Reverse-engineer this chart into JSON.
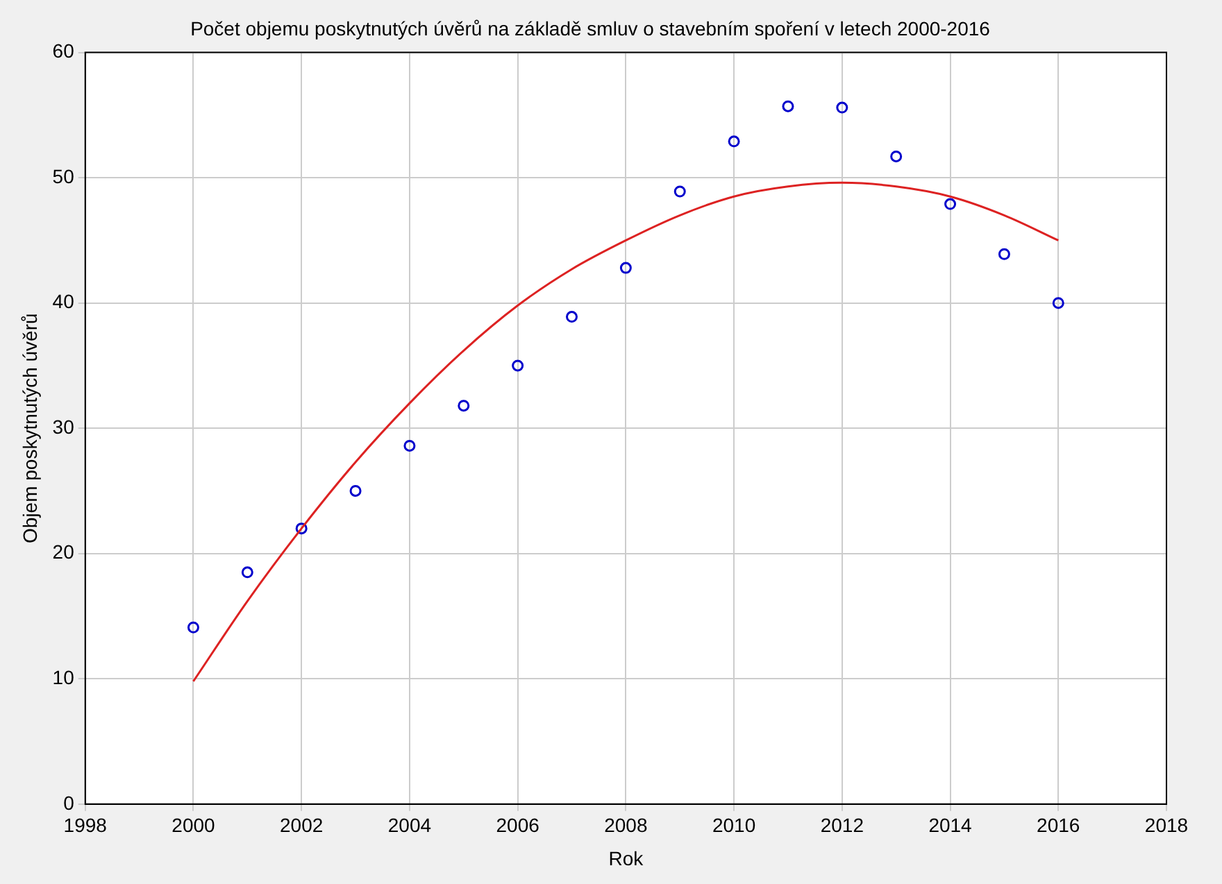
{
  "chart_data": {
    "type": "scatter",
    "title": "Počet objemu poskytnutých úvěrů na základě smluv o stavebním spoření v letech 2000-2016",
    "xlabel": "Rok",
    "ylabel": "Objem poskytnutých úvěrů",
    "xlim": [
      1998,
      2018
    ],
    "xticks": [
      1998,
      2000,
      2002,
      2004,
      2006,
      2008,
      2010,
      2012,
      2014,
      2016,
      2018
    ],
    "ylim": [
      0,
      60
    ],
    "yticks": [
      0,
      10,
      20,
      30,
      40,
      50,
      60
    ],
    "grid": true,
    "legend": false,
    "series": [
      {
        "marker": "circle",
        "color": "#0000cc",
        "x": [
          2000,
          2001,
          2002,
          2003,
          2004,
          2005,
          2006,
          2007,
          2008,
          2009,
          2010,
          2011,
          2012,
          2013,
          2014,
          2015,
          2016
        ],
        "values": [
          14.1,
          18.5,
          22,
          25,
          28.6,
          31.8,
          35,
          38.9,
          42.8,
          48.9,
          52.9,
          55.7,
          55.6,
          51.7,
          47.9,
          43.9,
          40
        ]
      },
      {
        "type": "line",
        "marker": "none",
        "color": "#dd2222",
        "x": [
          2000,
          2001,
          2002,
          2003,
          2004,
          2005,
          2006,
          2007,
          2008,
          2009,
          2010,
          2011,
          2012,
          2013,
          2014,
          2015,
          2016
        ],
        "values": [
          9.8,
          16.2,
          22,
          27.3,
          32,
          36.2,
          39.8,
          42.7,
          45,
          47,
          48.5,
          49.3,
          49.6,
          49.3,
          48.5,
          47,
          45
        ]
      }
    ]
  }
}
